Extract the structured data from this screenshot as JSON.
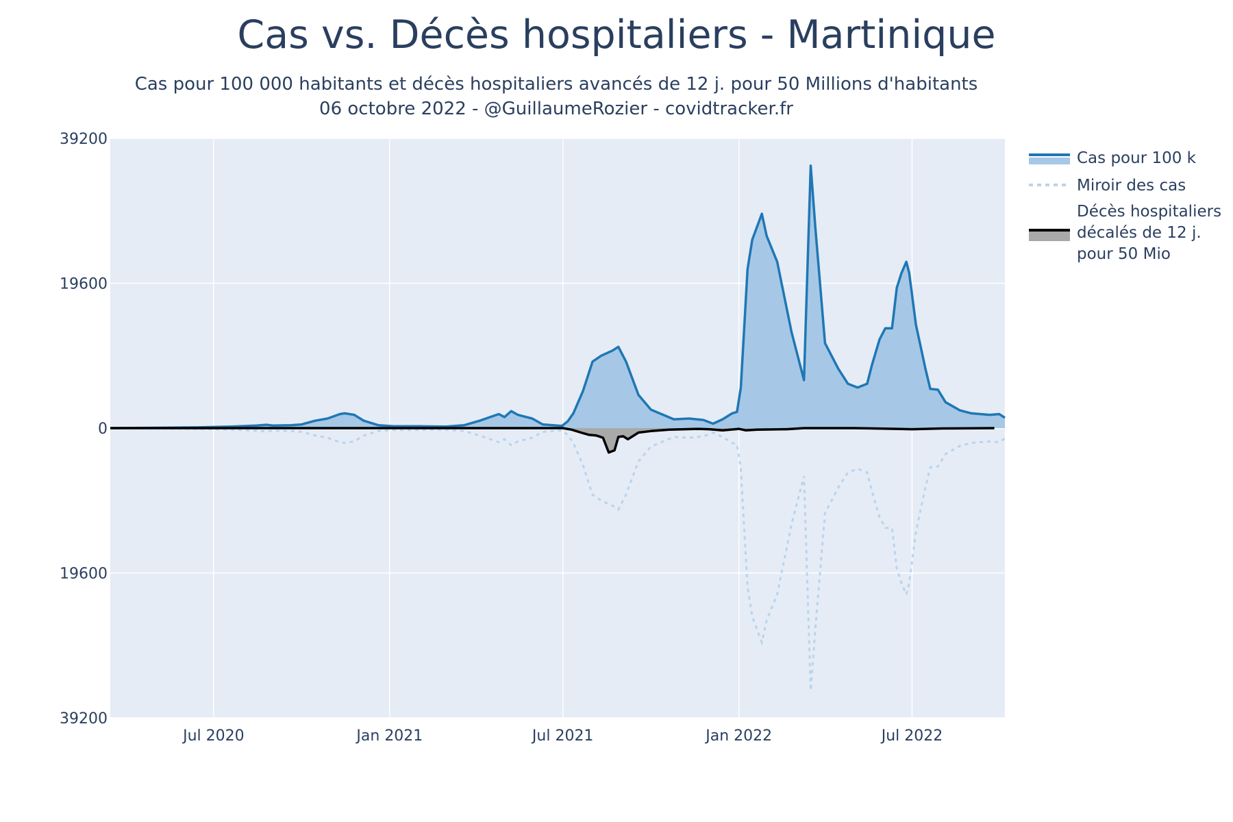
{
  "chart_data": {
    "type": "area",
    "title": "Cas vs. Décès hospitaliers - Martinique",
    "subtitle_line1": "Cas pour 100 000 habitants et décès hospitaliers avancés de 12 j. pour 50 Millions d'habitants",
    "subtitle_line2": "06 octobre 2022 - @GuillaumeRozier - covidtracker.fr",
    "xlabel": "",
    "ylabel": "",
    "xlim": [
      "2020-03-15",
      "2022-10-06"
    ],
    "ylim": [
      -39200,
      39200
    ],
    "x_ticks": [
      {
        "date": "2020-07-01",
        "label": "Jul 2020"
      },
      {
        "date": "2021-01-01",
        "label": "Jan 2021"
      },
      {
        "date": "2021-07-01",
        "label": "Jul 2021"
      },
      {
        "date": "2022-01-01",
        "label": "Jan 2022"
      },
      {
        "date": "2022-07-01",
        "label": "Jul 2022"
      }
    ],
    "y_ticks": [
      {
        "value": 39200,
        "label": "39200"
      },
      {
        "value": 19600,
        "label": "19600"
      },
      {
        "value": 0,
        "label": "0"
      },
      {
        "value": -19600,
        "label": "19600"
      },
      {
        "value": -39200,
        "label": "39200"
      }
    ],
    "grid": true,
    "legend_position": "right",
    "colors": {
      "cases_line": "#1f77b4",
      "cases_fill": "#a6c8e6",
      "mirror": "#b9d4ec",
      "deaths_line": "#000000",
      "deaths_fill": "#a9a9a9",
      "plot_bg": "#e5ecf6",
      "grid": "#ffffff"
    },
    "series": [
      {
        "name": "Cas pour 100 k",
        "points": [
          [
            "2020-03-15",
            0
          ],
          [
            "2020-05-01",
            50
          ],
          [
            "2020-06-15",
            100
          ],
          [
            "2020-07-20",
            200
          ],
          [
            "2020-08-15",
            350
          ],
          [
            "2020-08-25",
            450
          ],
          [
            "2020-09-01",
            350
          ],
          [
            "2020-09-20",
            400
          ],
          [
            "2020-10-01",
            500
          ],
          [
            "2020-10-15",
            1000
          ],
          [
            "2020-10-28",
            1300
          ],
          [
            "2020-11-10",
            1900
          ],
          [
            "2020-11-15",
            2000
          ],
          [
            "2020-11-25",
            1800
          ],
          [
            "2020-12-05",
            1000
          ],
          [
            "2020-12-20",
            400
          ],
          [
            "2021-01-05",
            250
          ],
          [
            "2021-02-01",
            250
          ],
          [
            "2021-03-01",
            200
          ],
          [
            "2021-03-20",
            400
          ],
          [
            "2021-04-05",
            1000
          ],
          [
            "2021-04-25",
            1900
          ],
          [
            "2021-05-01",
            1500
          ],
          [
            "2021-05-08",
            2300
          ],
          [
            "2021-05-15",
            1800
          ],
          [
            "2021-05-30",
            1300
          ],
          [
            "2021-06-10",
            500
          ],
          [
            "2021-06-30",
            300
          ],
          [
            "2021-07-06",
            900
          ],
          [
            "2021-07-12",
            2000
          ],
          [
            "2021-07-22",
            5000
          ],
          [
            "2021-08-01",
            9000
          ],
          [
            "2021-08-10",
            9800
          ],
          [
            "2021-08-22",
            10500
          ],
          [
            "2021-08-28",
            11000
          ],
          [
            "2021-09-05",
            9000
          ],
          [
            "2021-09-18",
            4500
          ],
          [
            "2021-10-01",
            2500
          ],
          [
            "2021-10-25",
            1200
          ],
          [
            "2021-11-10",
            1300
          ],
          [
            "2021-11-25",
            1100
          ],
          [
            "2021-12-05",
            600
          ],
          [
            "2021-12-15",
            1200
          ],
          [
            "2021-12-25",
            2000
          ],
          [
            "2021-12-30",
            2200
          ],
          [
            "2022-01-03",
            5500
          ],
          [
            "2022-01-10",
            21500
          ],
          [
            "2022-01-15",
            25500
          ],
          [
            "2022-01-25",
            29000
          ],
          [
            "2022-01-30",
            26000
          ],
          [
            "2022-02-10",
            22500
          ],
          [
            "2022-02-25",
            13000
          ],
          [
            "2022-03-10",
            6500
          ],
          [
            "2022-03-13",
            19000
          ],
          [
            "2022-03-17",
            35500
          ],
          [
            "2022-03-22",
            27000
          ],
          [
            "2022-04-01",
            11500
          ],
          [
            "2022-04-15",
            8000
          ],
          [
            "2022-04-25",
            6000
          ],
          [
            "2022-05-05",
            5500
          ],
          [
            "2022-05-15",
            6000
          ],
          [
            "2022-05-20",
            8500
          ],
          [
            "2022-05-28",
            12000
          ],
          [
            "2022-06-03",
            13500
          ],
          [
            "2022-06-10",
            13500
          ],
          [
            "2022-06-15",
            19000
          ],
          [
            "2022-06-20",
            21000
          ],
          [
            "2022-06-25",
            22500
          ],
          [
            "2022-06-28",
            21000
          ],
          [
            "2022-07-05",
            14000
          ],
          [
            "2022-07-15",
            8000
          ],
          [
            "2022-07-20",
            5300
          ],
          [
            "2022-07-28",
            5200
          ],
          [
            "2022-08-05",
            3500
          ],
          [
            "2022-08-20",
            2400
          ],
          [
            "2022-09-01",
            2000
          ],
          [
            "2022-09-20",
            1800
          ],
          [
            "2022-09-30",
            1900
          ],
          [
            "2022-10-06",
            1400
          ]
        ]
      },
      {
        "name": "Miroir des cas",
        "mirror_of": "Cas pour 100 k"
      },
      {
        "name": "Décès hospitaliers décalés de 12 j. pour 50 Mio",
        "legend_lines": [
          "Décès hospitaliers",
          "décalés de 12 j.",
          "pour 50 Mio"
        ],
        "points": [
          [
            "2020-03-15",
            0
          ],
          [
            "2021-07-01",
            0
          ],
          [
            "2021-07-10",
            -200
          ],
          [
            "2021-07-20",
            -600
          ],
          [
            "2021-07-28",
            -900
          ],
          [
            "2021-08-05",
            -1000
          ],
          [
            "2021-08-12",
            -1300
          ],
          [
            "2021-08-18",
            -3300
          ],
          [
            "2021-08-24",
            -3000
          ],
          [
            "2021-08-28",
            -1200
          ],
          [
            "2021-09-02",
            -1100
          ],
          [
            "2021-09-07",
            -1500
          ],
          [
            "2021-09-12",
            -1100
          ],
          [
            "2021-09-18",
            -600
          ],
          [
            "2021-10-01",
            -400
          ],
          [
            "2021-10-20",
            -200
          ],
          [
            "2021-11-20",
            -100
          ],
          [
            "2021-12-01",
            -150
          ],
          [
            "2021-12-15",
            -300
          ],
          [
            "2022-01-01",
            -100
          ],
          [
            "2022-01-08",
            -300
          ],
          [
            "2022-01-20",
            -200
          ],
          [
            "2022-02-20",
            -150
          ],
          [
            "2022-03-10",
            0
          ],
          [
            "2022-05-01",
            0
          ],
          [
            "2022-06-15",
            -100
          ],
          [
            "2022-07-01",
            -150
          ],
          [
            "2022-07-15",
            -100
          ],
          [
            "2022-08-01",
            -50
          ],
          [
            "2022-09-25",
            0
          ]
        ]
      }
    ]
  }
}
